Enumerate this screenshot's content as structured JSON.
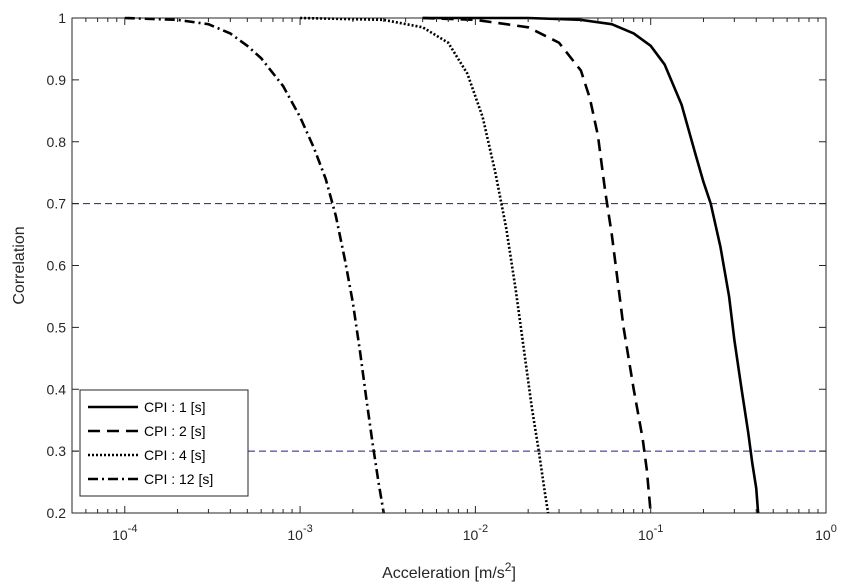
{
  "chart_data": {
    "type": "line",
    "xlabel": "Acceleration [m/s",
    "xlabel_sup": "2",
    "xlabel_end": "]",
    "ylabel": "Correlation",
    "xscale": "log",
    "xlim": [
      5e-05,
      1
    ],
    "ylim": [
      0.2,
      1
    ],
    "xticks": [
      {
        "base": "10",
        "exp": "-4",
        "value": 0.0001
      },
      {
        "base": "10",
        "exp": "-3",
        "value": 0.001
      },
      {
        "base": "10",
        "exp": "-2",
        "value": 0.01
      },
      {
        "base": "10",
        "exp": "-1",
        "value": 0.1
      },
      {
        "base": "10",
        "exp": "0",
        "value": 1
      }
    ],
    "yticks": [
      "0.2",
      "0.3",
      "0.4",
      "0.5",
      "0.6",
      "0.7",
      "0.8",
      "0.9",
      "1"
    ],
    "grid": false,
    "legend_position": "bottom-left",
    "reference_lines": [
      0.7,
      0.3
    ],
    "reference_line_color": "#1f1f8f",
    "series": [
      {
        "name": "CPI : 1 [s]",
        "style": "solid",
        "x": [
          0.005,
          0.02,
          0.04,
          0.06,
          0.08,
          0.1,
          0.12,
          0.15,
          0.18,
          0.2,
          0.22,
          0.25,
          0.28,
          0.3,
          0.33,
          0.36,
          0.38,
          0.4,
          0.41
        ],
        "y": [
          1.0,
          1.0,
          0.997,
          0.99,
          0.975,
          0.955,
          0.925,
          0.86,
          0.78,
          0.735,
          0.7,
          0.63,
          0.55,
          0.48,
          0.4,
          0.33,
          0.28,
          0.24,
          0.2
        ]
      },
      {
        "name": "CPI : 2 [s]",
        "style": "dashed",
        "x": [
          0.005,
          0.01,
          0.02,
          0.03,
          0.04,
          0.045,
          0.05,
          0.055,
          0.06,
          0.07,
          0.08,
          0.09,
          0.095,
          0.1
        ],
        "y": [
          1.0,
          0.997,
          0.985,
          0.96,
          0.915,
          0.87,
          0.81,
          0.72,
          0.65,
          0.5,
          0.4,
          0.32,
          0.27,
          0.2
        ]
      },
      {
        "name": "CPI : 4 [s]",
        "style": "dotted",
        "x": [
          0.001,
          0.003,
          0.005,
          0.007,
          0.009,
          0.011,
          0.013,
          0.015,
          0.017,
          0.019,
          0.021,
          0.023,
          0.025,
          0.026
        ],
        "y": [
          1.0,
          0.997,
          0.985,
          0.96,
          0.91,
          0.84,
          0.75,
          0.66,
          0.56,
          0.46,
          0.37,
          0.3,
          0.23,
          0.2
        ]
      },
      {
        "name": "CPI : 12 [s]",
        "style": "dashdot",
        "x": [
          0.0001,
          0.0002,
          0.0003,
          0.0004,
          0.0005,
          0.0006,
          0.0008,
          0.001,
          0.0012,
          0.0014,
          0.0016,
          0.0018,
          0.002,
          0.0022,
          0.0024,
          0.0026,
          0.0028,
          0.003
        ],
        "y": [
          1.0,
          0.997,
          0.99,
          0.975,
          0.955,
          0.935,
          0.89,
          0.84,
          0.79,
          0.74,
          0.68,
          0.61,
          0.54,
          0.46,
          0.38,
          0.31,
          0.25,
          0.2
        ]
      }
    ]
  }
}
